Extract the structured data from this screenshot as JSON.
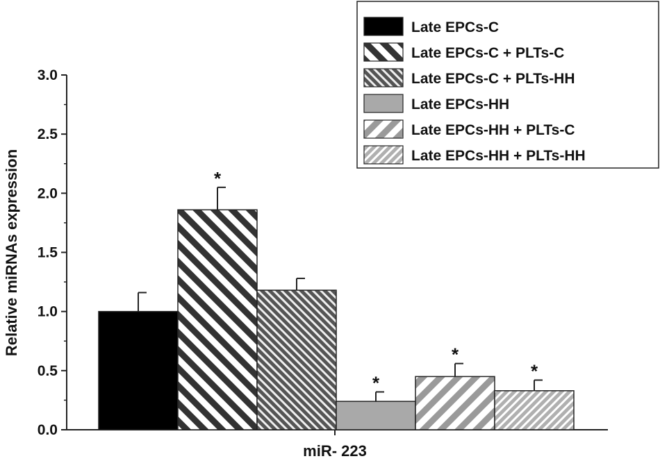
{
  "chart_data": {
    "type": "bar",
    "title": "",
    "xlabel": "miR- 223",
    "ylabel": "Relative miRNAs expression",
    "ylim": [
      0,
      3.0
    ],
    "yticks": [
      "0.0",
      "0.5",
      "1.0",
      "1.5",
      "2.0",
      "2.5",
      "3.0"
    ],
    "legend_position": "top-right",
    "categories": [
      "miR- 223"
    ],
    "series": [
      {
        "name": "Late EPCs-C",
        "value": 1.0,
        "error": 0.16,
        "significant": false,
        "pattern": "solid",
        "color": "#000000"
      },
      {
        "name": "Late EPCs-C + PLTs-C",
        "value": 1.86,
        "error": 0.19,
        "significant": true,
        "pattern": "diagonal-bold-dark",
        "color": "#333333"
      },
      {
        "name": "Late EPCs-C + PLTs-HH",
        "value": 1.18,
        "error": 0.1,
        "significant": false,
        "pattern": "diagonal-dense-dark",
        "color": "#555555"
      },
      {
        "name": "Late EPCs-HH",
        "value": 0.24,
        "error": 0.08,
        "significant": true,
        "pattern": "solid",
        "color": "#a9a9a9"
      },
      {
        "name": "Late EPCs-HH + PLTs-C",
        "value": 0.45,
        "error": 0.11,
        "significant": true,
        "pattern": "back-diagonal-bold-light",
        "color": "#9a9a9a"
      },
      {
        "name": "Late EPCs-HH + PLTs-HH",
        "value": 0.33,
        "error": 0.09,
        "significant": true,
        "pattern": "back-diagonal-dense-light",
        "color": "#b0b0b0"
      }
    ],
    "significance_marker": "*"
  }
}
